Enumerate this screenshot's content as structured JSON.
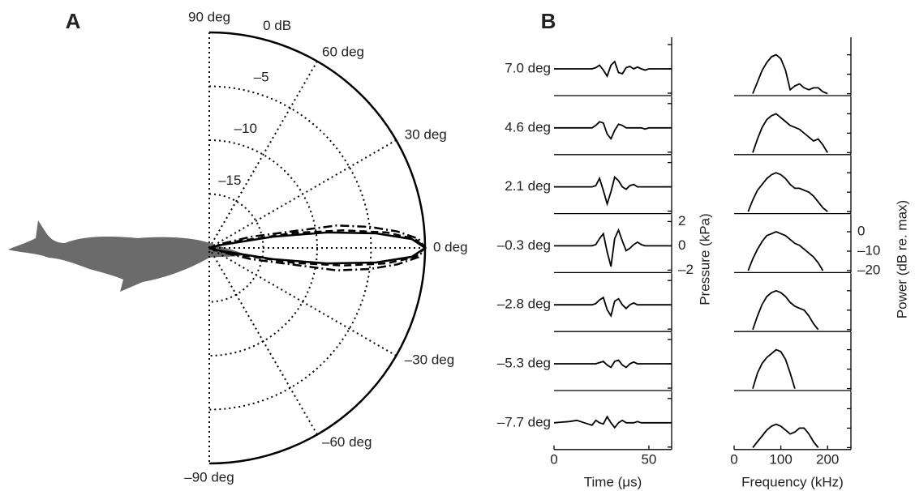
{
  "chart_data": [
    {
      "type": "polar",
      "panel": "A",
      "rlim": [
        -20,
        0
      ],
      "rticks": [
        {
          "value": 0,
          "label": "0 dB"
        },
        {
          "value": -5,
          "label": "–5"
        },
        {
          "value": -10,
          "label": "–10"
        },
        {
          "value": -15,
          "label": "–15"
        }
      ],
      "angle_ticks": [
        {
          "value": 90,
          "label": "90 deg"
        },
        {
          "value": 60,
          "label": "60 deg"
        },
        {
          "value": 30,
          "label": "30 deg"
        },
        {
          "value": 0,
          "label": "0 deg"
        },
        {
          "value": -30,
          "label": "–30 deg"
        },
        {
          "value": -60,
          "label": "–60 deg"
        },
        {
          "value": -90,
          "label": "–90 deg"
        }
      ],
      "theta": [
        -30,
        -20,
        -15,
        -10,
        -7.5,
        -5,
        -2.5,
        0,
        2.5,
        5,
        7.5,
        10,
        15,
        20,
        30
      ],
      "series": [
        {
          "dash": "solid",
          "color": "#000000",
          "values": [
            -20,
            -20,
            -19,
            -14,
            -9,
            -4.5,
            -1.2,
            0,
            -1.2,
            -4.5,
            -9,
            -14,
            -19,
            -20,
            -20
          ]
        },
        {
          "dash": "dashed",
          "color": "#000000",
          "values": [
            -20,
            -20,
            -18,
            -12,
            -7.5,
            -3.5,
            -0.9,
            0,
            -0.9,
            -3.5,
            -7.5,
            -12,
            -18,
            -20,
            -20
          ]
        },
        {
          "dash": "dashdot",
          "color": "#000000",
          "values": [
            -20,
            -19,
            -16,
            -8,
            -5,
            -2.5,
            -0.6,
            0,
            -0.6,
            -2.5,
            -5,
            -8,
            -16,
            -19,
            -20
          ]
        }
      ]
    },
    {
      "type": "waveform",
      "panel": "B",
      "categories": [
        "7.0 deg",
        "4.6 deg",
        "2.1 deg",
        "–0.3 deg",
        "–2.8 deg",
        "–5.3 deg",
        "–7.7 deg"
      ],
      "x_label": "Time (μs)",
      "y_label": "Pressure (kPa)",
      "xlim": [
        0,
        62
      ],
      "xticks": [
        0,
        50
      ],
      "ylim": [
        -2.2,
        2.6
      ],
      "yticks": [
        {
          "value": -2,
          "label": "–2"
        },
        0,
        2
      ],
      "labeled_row": 3,
      "x": [
        0,
        4,
        8,
        12,
        16,
        20,
        22,
        24,
        26,
        28,
        30,
        32,
        34,
        36,
        38,
        40,
        42,
        44,
        46,
        48,
        50,
        54,
        58,
        62
      ],
      "series": [
        {
          "color": "#000000",
          "values": [
            0,
            0,
            0,
            0,
            0,
            0,
            0.1,
            0.3,
            -0.1,
            -0.6,
            0.3,
            0.6,
            -0.3,
            -0.4,
            0.1,
            0.2,
            0,
            0.15,
            0,
            -0.1,
            0,
            0,
            0,
            0
          ]
        },
        {
          "color": "#000000",
          "values": [
            0,
            0,
            0,
            0,
            0,
            0,
            0.2,
            0.5,
            0.4,
            -0.5,
            -0.9,
            -0.2,
            0.3,
            0.2,
            0,
            0,
            0,
            0,
            0,
            -0.1,
            0,
            0,
            0,
            0
          ]
        },
        {
          "color": "#000000",
          "values": [
            0,
            0,
            0,
            0,
            0,
            0,
            0.1,
            0.7,
            -0.3,
            -1.4,
            -0.4,
            0.8,
            0.5,
            0,
            -0.2,
            0.1,
            0.2,
            0,
            0,
            0,
            0,
            0,
            0,
            0
          ]
        },
        {
          "color": "#000000",
          "values": [
            0,
            0,
            0,
            0,
            0,
            0,
            0.1,
            0.6,
            1.0,
            -0.5,
            -1.7,
            0.6,
            1.3,
            0.4,
            -0.4,
            -0.2,
            0.1,
            0.3,
            0.1,
            0,
            0,
            0,
            0,
            0
          ]
        },
        {
          "color": "#000000",
          "values": [
            0,
            0,
            0,
            0,
            0,
            0,
            0.1,
            0.4,
            0.6,
            -0.4,
            -0.9,
            0.3,
            0.5,
            0,
            -0.3,
            0,
            0.15,
            0,
            0,
            0,
            0,
            0,
            0,
            0
          ]
        },
        {
          "color": "#000000",
          "values": [
            0,
            0,
            0,
            0,
            0,
            0,
            0,
            0.1,
            0.2,
            -0.1,
            -0.3,
            0.2,
            0.3,
            -0.1,
            -0.3,
            0,
            0.15,
            0,
            0,
            0,
            0,
            0,
            0,
            0
          ]
        },
        {
          "color": "#000000",
          "values": [
            0,
            0.05,
            0.1,
            0.2,
            0,
            -0.2,
            0.2,
            0,
            -0.1,
            0.5,
            0,
            -0.4,
            0,
            0.2,
            0,
            0,
            0,
            0.1,
            0,
            0,
            0,
            0,
            0,
            0
          ]
        }
      ]
    },
    {
      "type": "spectrum",
      "x_label": "Frequency (kHz)",
      "y_label": "Power (dB re. max)",
      "xlim": [
        0,
        250
      ],
      "xticks": [
        0,
        100,
        200
      ],
      "ylim": [
        -21,
        9
      ],
      "yticks": [
        0,
        {
          "value": -10,
          "label": "–10"
        },
        {
          "value": -20,
          "label": "–20"
        }
      ],
      "labeled_row": 3,
      "x": [
        30,
        40,
        50,
        60,
        70,
        80,
        90,
        100,
        110,
        120,
        130,
        140,
        150,
        160,
        170,
        180,
        190,
        200,
        210,
        220
      ],
      "series": [
        {
          "color": "#000000",
          "values": [
            null,
            -20,
            -14,
            -8,
            -4,
            -1,
            0,
            -2,
            -8,
            -18,
            -16,
            -15,
            -17,
            -18,
            -17,
            -17,
            -19,
            -20,
            null,
            null
          ]
        },
        {
          "color": "#000000",
          "values": [
            null,
            -20,
            -13,
            -7,
            -3,
            -1,
            0,
            -2,
            -4,
            -6,
            -7,
            -8,
            -10,
            -12,
            -14,
            -13,
            -16,
            -20,
            null,
            null
          ]
        },
        {
          "color": "#000000",
          "values": [
            -20,
            -14,
            -9,
            -6,
            -3,
            -1,
            0,
            -1,
            -3,
            -6,
            -8,
            -8,
            -9,
            -10,
            -12,
            -15,
            -18,
            -20,
            null,
            null
          ]
        },
        {
          "color": "#000000",
          "values": [
            -20,
            -14,
            -9,
            -5,
            -2,
            -1,
            0,
            -1,
            -2,
            -4,
            -6,
            -7,
            -9,
            -11,
            -13,
            -16,
            -20,
            null,
            null,
            null
          ]
        },
        {
          "color": "#000000",
          "values": [
            null,
            -20,
            -13,
            -7,
            -3,
            -1,
            0,
            -1,
            -3,
            -6,
            -8,
            -9,
            -10,
            -13,
            -17,
            -20,
            null,
            null,
            null,
            null
          ]
        },
        {
          "color": "#000000",
          "values": [
            null,
            -20,
            -12,
            -7,
            -4,
            -2,
            0,
            -1,
            -5,
            -12,
            -20,
            null,
            null,
            null,
            null,
            null,
            null,
            null,
            null,
            null
          ]
        },
        {
          "color": "#000000",
          "values": [
            null,
            -20,
            -17,
            -14,
            -11,
            -9,
            -8,
            -9,
            -11,
            -13,
            -12,
            -10,
            -10,
            -13,
            -17,
            -20,
            null,
            null,
            null,
            null
          ]
        }
      ]
    }
  ]
}
